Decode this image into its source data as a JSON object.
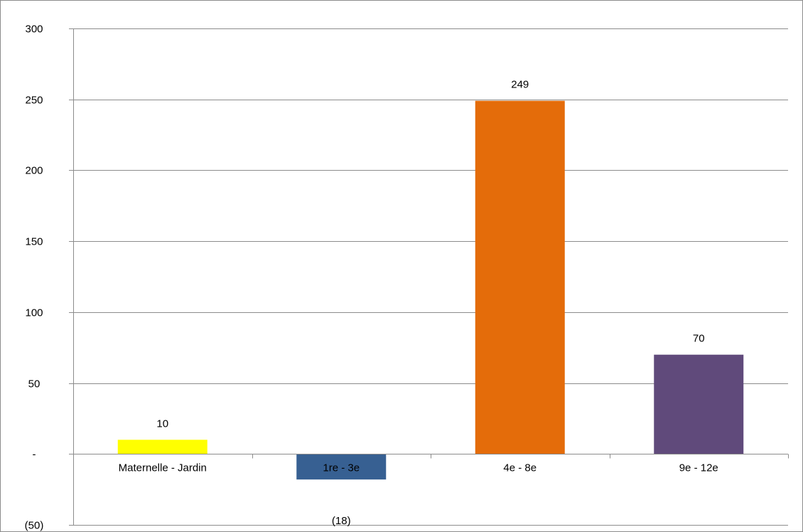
{
  "chart_data": {
    "type": "bar",
    "categories": [
      "Maternelle - Jardin",
      "1re - 3e",
      "4e - 8e",
      "9e - 12e"
    ],
    "values": [
      10,
      -18,
      249,
      70
    ],
    "data_labels": [
      "10",
      "(18)",
      "249",
      "70"
    ],
    "colors": [
      "#ffff00",
      "#376092",
      "#e46c0a",
      "#604a7b"
    ],
    "yticks": [
      300,
      250,
      200,
      150,
      100,
      50,
      0,
      -50
    ],
    "ytick_labels": [
      "300",
      "250",
      "200",
      "150",
      "100",
      "50",
      "-",
      "(50)"
    ],
    "ylim": [
      -50,
      300
    ],
    "grid": true,
    "title": "",
    "xlabel": "",
    "ylabel": ""
  }
}
